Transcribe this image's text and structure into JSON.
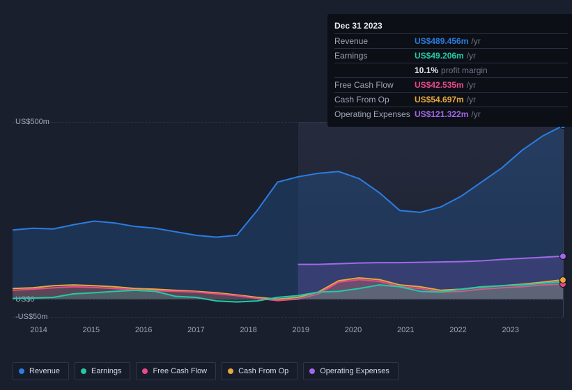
{
  "chart": {
    "type": "area",
    "bg": "#1a1f2e",
    "plot_bg": "transparent",
    "grid_color": "#2f3649",
    "highlight_bg": "rgba(90,100,130,0.12)",
    "ylim": [
      -50,
      500
    ],
    "x_years": [
      "2014",
      "2015",
      "2016",
      "2017",
      "2018",
      "2019",
      "2020",
      "2021",
      "2022",
      "2023"
    ],
    "yticks": [
      {
        "v": 500,
        "label": "US$500m"
      },
      {
        "v": 0,
        "label": "US$0"
      },
      {
        "v": -50,
        "label": "-US$50m"
      }
    ],
    "series": [
      {
        "key": "revenue",
        "label": "Revenue",
        "color": "#2b7de0",
        "fill_opacity": 0.22,
        "values": [
          195,
          200,
          198,
          210,
          220,
          215,
          205,
          200,
          190,
          180,
          175,
          180,
          250,
          330,
          345,
          355,
          360,
          340,
          300,
          250,
          245,
          260,
          290,
          330,
          370,
          420,
          460,
          489.456
        ]
      },
      {
        "key": "earnings",
        "label": "Earnings",
        "color": "#23c9a7",
        "fill_opacity": 0.18,
        "values": [
          2,
          3,
          5,
          15,
          18,
          22,
          25,
          22,
          8,
          5,
          -5,
          -8,
          -5,
          5,
          10,
          20,
          22,
          30,
          40,
          35,
          22,
          20,
          28,
          35,
          38,
          40,
          45,
          49.206
        ]
      },
      {
        "key": "fcf",
        "label": "Free Cash Flow",
        "color": "#e84a8a",
        "fill_opacity": 0.15,
        "values": [
          25,
          28,
          32,
          35,
          33,
          30,
          26,
          24,
          22,
          20,
          15,
          10,
          2,
          -4,
          0,
          15,
          48,
          55,
          50,
          35,
          30,
          20,
          22,
          28,
          32,
          35,
          40,
          42.535
        ]
      },
      {
        "key": "cfo",
        "label": "Cash From Op",
        "color": "#e6a73c",
        "fill_opacity": 0.18,
        "values": [
          30,
          32,
          38,
          40,
          38,
          35,
          30,
          28,
          25,
          22,
          18,
          12,
          5,
          0,
          5,
          20,
          52,
          60,
          55,
          40,
          35,
          25,
          28,
          34,
          38,
          42,
          48,
          54.697
        ]
      },
      {
        "key": "opex",
        "label": "Operating Expenses",
        "color": "#a268e8",
        "fill_opacity": 0.18,
        "values": [
          null,
          null,
          null,
          null,
          null,
          null,
          null,
          null,
          null,
          null,
          null,
          null,
          null,
          null,
          98,
          98,
          100,
          102,
          103,
          103,
          104,
          105,
          106,
          108,
          112,
          115,
          118,
          121.322
        ]
      }
    ],
    "marker_index": 27
  },
  "tooltip": {
    "date": "Dec 31 2023",
    "rows": [
      {
        "label": "Revenue",
        "value": "US$489.456m",
        "unit": "/yr",
        "color": "#2b7de0"
      },
      {
        "label": "Earnings",
        "value": "US$49.206m",
        "unit": "/yr",
        "color": "#23c9a7"
      },
      {
        "label": "",
        "value": "10.1%",
        "unit": "profit margin",
        "color": "#e8eaf0"
      },
      {
        "label": "Free Cash Flow",
        "value": "US$42.535m",
        "unit": "/yr",
        "color": "#e84a8a"
      },
      {
        "label": "Cash From Op",
        "value": "US$54.697m",
        "unit": "/yr",
        "color": "#e6a73c"
      },
      {
        "label": "Operating Expenses",
        "value": "US$121.322m",
        "unit": "/yr",
        "color": "#a268e8"
      }
    ]
  },
  "legend": [
    {
      "label": "Revenue",
      "color": "#2b7de0"
    },
    {
      "label": "Earnings",
      "color": "#23c9a7"
    },
    {
      "label": "Free Cash Flow",
      "color": "#e84a8a"
    },
    {
      "label": "Cash From Op",
      "color": "#e6a73c"
    },
    {
      "label": "Operating Expenses",
      "color": "#a268e8"
    }
  ]
}
